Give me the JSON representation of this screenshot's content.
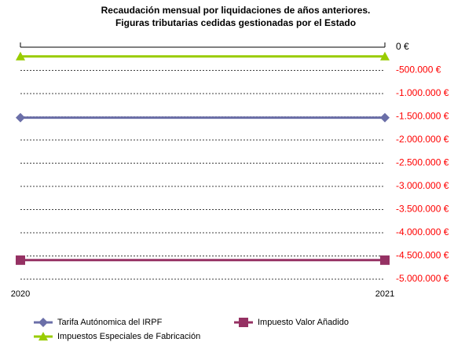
{
  "chart_data": {
    "type": "line",
    "title": [
      "Recaudación mensual por liquidaciones de años anteriores.",
      "Figuras tributarias cedidas gestionadas por el Estado"
    ],
    "categories": [
      "2020",
      "2021"
    ],
    "series": [
      {
        "name": "Tarifa Autónomica del IRPF",
        "color": "#6b6fa8",
        "marker": "diamond",
        "values": [
          -1520000,
          -1520000
        ]
      },
      {
        "name": "Impuesto Valor Añadido",
        "color": "#953163",
        "marker": "square",
        "values": [
          -4590000,
          -4590000
        ]
      },
      {
        "name": "Impuestos Especiales de Fabricación",
        "color": "#99cc00",
        "marker": "triangle",
        "values": [
          -200000,
          -200000
        ]
      }
    ],
    "ylim": [
      -5000000,
      0
    ],
    "yticks": [
      {
        "value": 0,
        "label": "0 €"
      },
      {
        "value": -500000,
        "label": "-500.000 €"
      },
      {
        "value": -1000000,
        "label": "-1.000.000 €"
      },
      {
        "value": -1500000,
        "label": "-1.500.000 €"
      },
      {
        "value": -2000000,
        "label": "-2.000.000 €"
      },
      {
        "value": -2500000,
        "label": "-2.500.000 €"
      },
      {
        "value": -3000000,
        "label": "-3.000.000 €"
      },
      {
        "value": -3500000,
        "label": "-3.500.000 €"
      },
      {
        "value": -4000000,
        "label": "-4.000.000 €"
      },
      {
        "value": -4500000,
        "label": "-4.500.000 €"
      },
      {
        "value": -5000000,
        "label": "-5.000.000 €"
      }
    ],
    "y_axis_side": "right",
    "negative_label_color": "#ff0000",
    "grid": true
  }
}
